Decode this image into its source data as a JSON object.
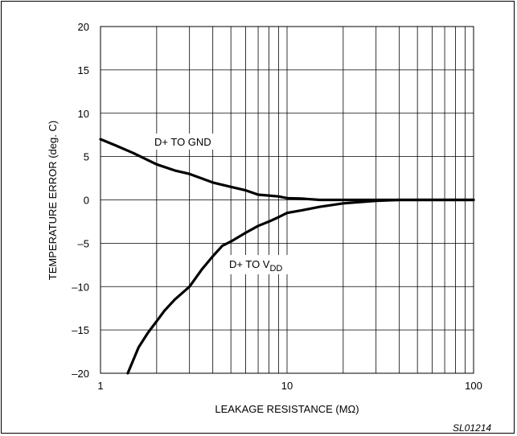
{
  "chart_data": {
    "type": "line",
    "xlabel": "LEAKAGE RESISTANCE (MΩ)",
    "ylabel": "TEMPERATURE ERROR (deg. C)",
    "x_scale": "log",
    "xlim": [
      1,
      100
    ],
    "ylim": [
      -20,
      20
    ],
    "x_tick_labels": [
      "1",
      "10",
      "100"
    ],
    "y_tick_labels": [
      "20",
      "15",
      "10",
      "5",
      "0",
      "–5",
      "–10",
      "–15",
      "–20"
    ],
    "y_ticks": [
      20,
      15,
      10,
      5,
      0,
      -5,
      -10,
      -15,
      -20
    ],
    "x_ticks": [
      1,
      10,
      100
    ],
    "grid": true,
    "series": [
      {
        "name": "D+ TO GND",
        "x": [
          1,
          1.2,
          1.5,
          2,
          2.5,
          3,
          4,
          5,
          6,
          7,
          8,
          9,
          10,
          12,
          15,
          20,
          30,
          40,
          50,
          70,
          100
        ],
        "y": [
          7,
          6.3,
          5.4,
          4.1,
          3.4,
          3.0,
          2.0,
          1.5,
          1.1,
          0.6,
          0.5,
          0.4,
          0.2,
          0.15,
          0,
          0,
          0,
          0,
          0,
          0,
          0
        ]
      },
      {
        "name": "D+ TO V",
        "name_subscript": "DD",
        "x": [
          1.4,
          1.6,
          1.8,
          2,
          2.2,
          2.5,
          3,
          3.5,
          4,
          4.5,
          5,
          6,
          7,
          8,
          9,
          10,
          12,
          15,
          20,
          30,
          40,
          50,
          70,
          100
        ],
        "y": [
          -20,
          -17,
          -15.3,
          -14,
          -12.8,
          -11.5,
          -10,
          -8,
          -6.5,
          -5.3,
          -4.8,
          -3.8,
          -3.0,
          -2.5,
          -2.0,
          -1.5,
          -1.2,
          -0.8,
          -0.4,
          -0.1,
          0,
          0,
          0,
          0
        ]
      }
    ],
    "figure_id": "SL01214"
  }
}
